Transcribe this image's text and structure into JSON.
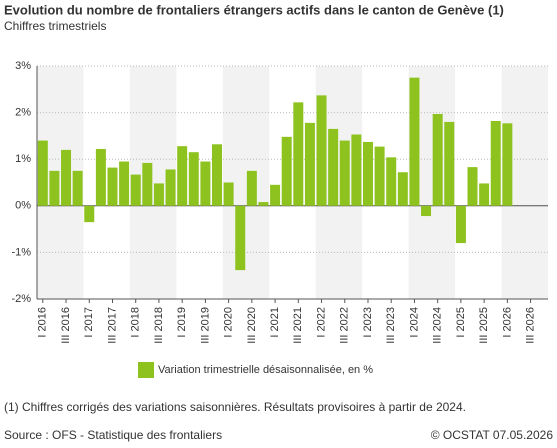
{
  "chart_data": {
    "type": "bar",
    "title": "Evolution du nombre de frontaliers étrangers actifs dans le canton de Genève (1)",
    "subtitle": "Chiffres trimestriels",
    "categories": [
      "I 2016",
      null,
      "III 2016",
      null,
      "I 2017",
      null,
      "III 2017",
      null,
      "I 2018",
      null,
      "III 2018",
      null,
      "I 2019",
      null,
      "III 2019",
      null,
      "I 2020",
      null,
      "III 2020",
      null,
      "I 2021",
      null,
      "III 2021",
      null,
      "I 2022",
      null,
      "III 2022",
      null,
      "I 2023",
      null,
      "III 2023",
      null,
      "I 2024",
      null,
      "III 2024",
      null,
      "I 2025",
      null,
      "III 2025",
      null,
      "I 2026",
      null,
      "III 2026",
      null
    ],
    "series": [
      {
        "name": "Variation trimestrielle désaisonnalisée, en %",
        "color": "#8dc21f",
        "values": [
          1.4,
          0.75,
          1.2,
          0.75,
          -0.35,
          1.22,
          0.82,
          0.95,
          0.67,
          0.92,
          0.48,
          0.78,
          1.28,
          1.15,
          0.95,
          1.32,
          0.5,
          -1.38,
          0.75,
          0.08,
          0.45,
          1.48,
          2.22,
          1.78,
          2.37,
          1.65,
          1.4,
          1.53,
          1.37,
          1.27,
          1.04,
          0.72,
          2.75,
          -0.22,
          1.97,
          1.8,
          -0.8,
          0.83,
          0.48,
          1.82,
          1.77,
          null,
          null,
          null
        ]
      }
    ],
    "ylim": [
      -2,
      3
    ],
    "yticks": [
      {
        "value": -2,
        "label": "-2%"
      },
      {
        "value": -1,
        "label": "-1%"
      },
      {
        "value": 0,
        "label": "0%"
      },
      {
        "value": 1,
        "label": "1%"
      },
      {
        "value": 2,
        "label": "2%"
      },
      {
        "value": 3,
        "label": "3%"
      }
    ],
    "grid": true,
    "footnote": "(1) Chiffres corrigés des variations saisonnières. Résultats provisoires à partir de 2024.",
    "source": "Source : OFS - Statistique des frontaliers",
    "copyright": "© OCSTAT 07.05.2026"
  }
}
